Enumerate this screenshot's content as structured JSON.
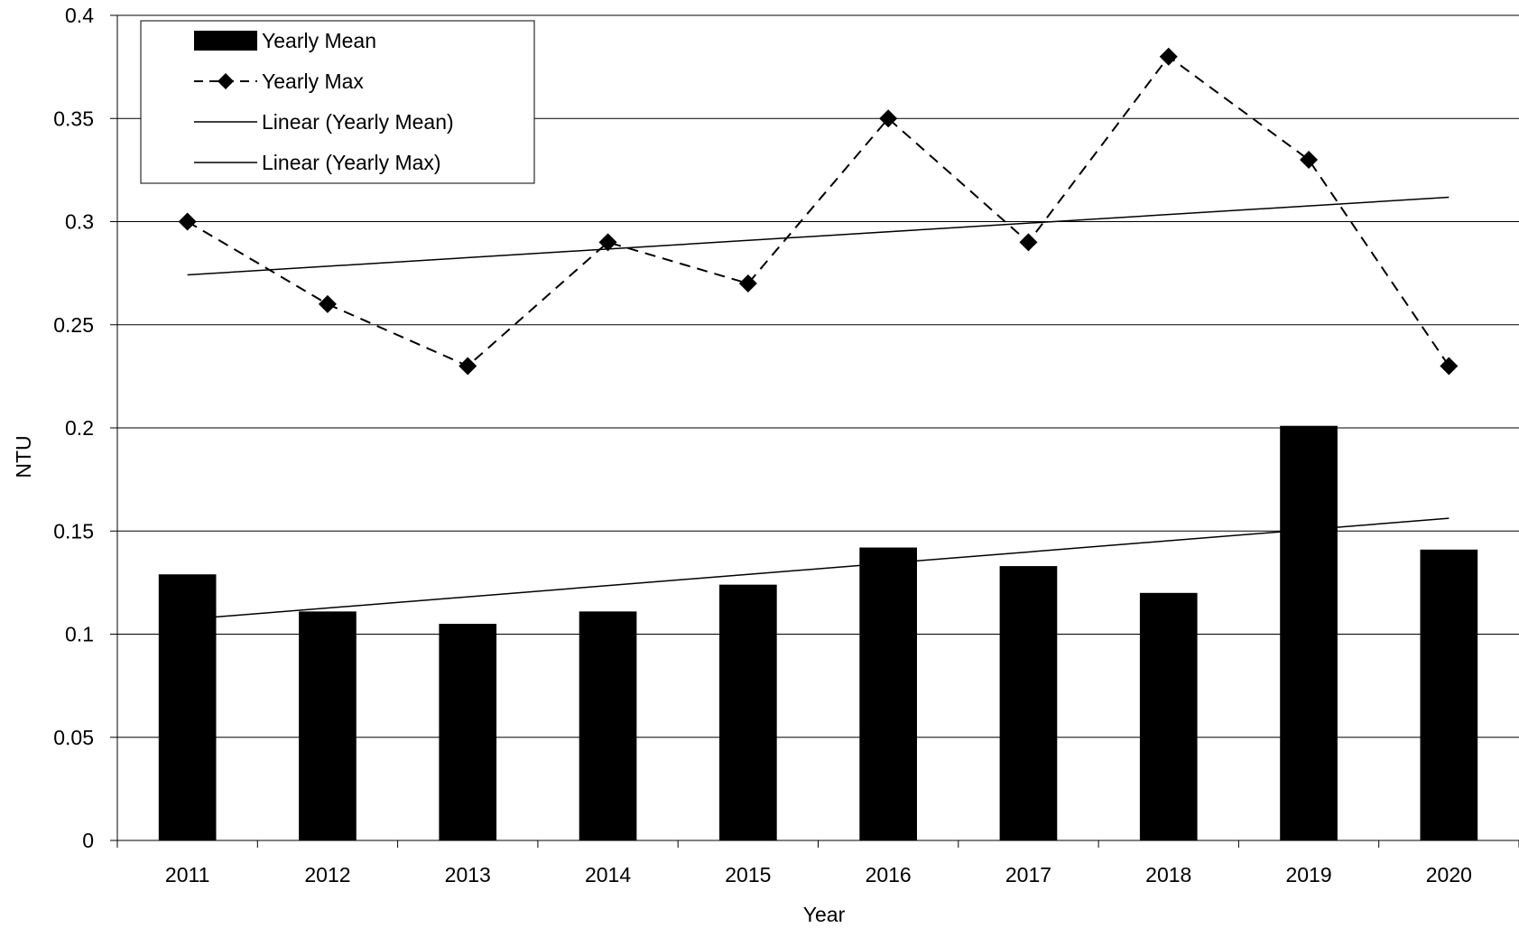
{
  "chart_data": {
    "type": "bar",
    "categories": [
      "2011",
      "2012",
      "2013",
      "2014",
      "2015",
      "2016",
      "2017",
      "2018",
      "2019",
      "2020"
    ],
    "series": [
      {
        "name": "Yearly Mean",
        "kind": "bar",
        "values": [
          0.129,
          0.111,
          0.105,
          0.111,
          0.124,
          0.142,
          0.133,
          0.12,
          0.201,
          0.141
        ]
      },
      {
        "name": "Yearly Max",
        "kind": "line",
        "style": "dashed",
        "marker": "diamond",
        "values": [
          0.3,
          0.26,
          0.23,
          0.29,
          0.27,
          0.35,
          0.29,
          0.38,
          0.33,
          0.23
        ]
      },
      {
        "name": "Linear (Yearly Mean)",
        "kind": "trendline",
        "of": "Yearly Mean"
      },
      {
        "name": "Linear (Yearly Max)",
        "kind": "trendline",
        "of": "Yearly Max"
      }
    ],
    "xlabel": "Year",
    "ylabel": "NTU",
    "ylim": [
      0,
      0.4
    ],
    "yticks": [
      "0",
      "0.05",
      "0.1",
      "0.15",
      "0.2",
      "0.25",
      "0.3",
      "0.35",
      "0.4"
    ],
    "grid": true,
    "legend_position": "top-left",
    "colors": {
      "bar": "#000000",
      "line": "#000000",
      "grid": "#000000"
    }
  }
}
